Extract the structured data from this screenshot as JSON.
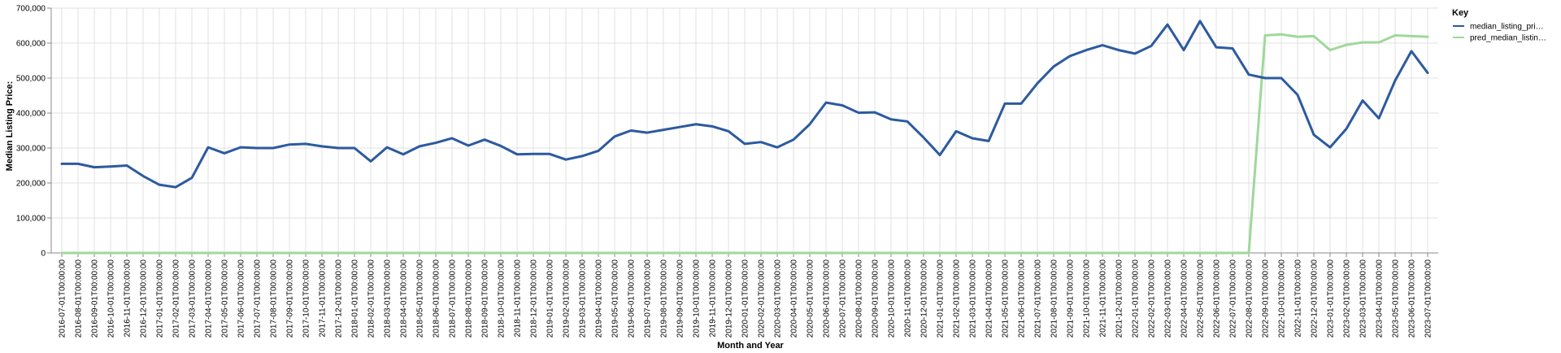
{
  "chart_data": {
    "type": "line",
    "title": "",
    "xlabel": "Month and Year",
    "ylabel": "Median Listing Price:",
    "ylim": [
      0,
      700000
    ],
    "y_ticks": [
      "0",
      "100,000",
      "200,000",
      "300,000",
      "400,000",
      "500,000",
      "600,000",
      "700,000"
    ],
    "grid": true,
    "legend": {
      "title": "Key",
      "placement": "top-right"
    },
    "x": [
      "2016-07-01T00:00:00",
      "2016-08-01T00:00:00",
      "2016-09-01T00:00:00",
      "2016-10-01T00:00:00",
      "2016-11-01T00:00:00",
      "2016-12-01T00:00:00",
      "2017-01-01T00:00:00",
      "2017-02-01T00:00:00",
      "2017-03-01T00:00:00",
      "2017-04-01T00:00:00",
      "2017-05-01T00:00:00",
      "2017-06-01T00:00:00",
      "2017-07-01T00:00:00",
      "2017-08-01T00:00:00",
      "2017-09-01T00:00:00",
      "2017-10-01T00:00:00",
      "2017-11-01T00:00:00",
      "2017-12-01T00:00:00",
      "2018-01-01T00:00:00",
      "2018-02-01T00:00:00",
      "2018-03-01T00:00:00",
      "2018-04-01T00:00:00",
      "2018-05-01T00:00:00",
      "2018-06-01T00:00:00",
      "2018-07-01T00:00:00",
      "2018-08-01T00:00:00",
      "2018-09-01T00:00:00",
      "2018-10-01T00:00:00",
      "2018-11-01T00:00:00",
      "2018-12-01T00:00:00",
      "2019-01-01T00:00:00",
      "2019-02-01T00:00:00",
      "2019-03-01T00:00:00",
      "2019-04-01T00:00:00",
      "2019-05-01T00:00:00",
      "2019-06-01T00:00:00",
      "2019-07-01T00:00:00",
      "2019-08-01T00:00:00",
      "2019-09-01T00:00:00",
      "2019-10-01T00:00:00",
      "2019-11-01T00:00:00",
      "2019-12-01T00:00:00",
      "2020-01-01T00:00:00",
      "2020-02-01T00:00:00",
      "2020-03-01T00:00:00",
      "2020-04-01T00:00:00",
      "2020-05-01T00:00:00",
      "2020-06-01T00:00:00",
      "2020-07-01T00:00:00",
      "2020-08-01T00:00:00",
      "2020-09-01T00:00:00",
      "2020-10-01T00:00:00",
      "2020-11-01T00:00:00",
      "2020-12-01T00:00:00",
      "2021-01-01T00:00:00",
      "2021-02-01T00:00:00",
      "2021-03-01T00:00:00",
      "2021-04-01T00:00:00",
      "2021-05-01T00:00:00",
      "2021-06-01T00:00:00",
      "2021-07-01T00:00:00",
      "2021-08-01T00:00:00",
      "2021-09-01T00:00:00",
      "2021-10-01T00:00:00",
      "2021-11-01T00:00:00",
      "2021-12-01T00:00:00",
      "2022-01-01T00:00:00",
      "2022-02-01T00:00:00",
      "2022-03-01T00:00:00",
      "2022-04-01T00:00:00",
      "2022-05-01T00:00:00",
      "2022-06-01T00:00:00",
      "2022-07-01T00:00:00",
      "2022-08-01T00:00:00",
      "2022-09-01T00:00:00",
      "2022-10-01T00:00:00",
      "2022-11-01T00:00:00",
      "2022-12-01T00:00:00",
      "2023-01-01T00:00:00",
      "2023-02-01T00:00:00",
      "2023-03-01T00:00:00",
      "2023-04-01T00:00:00",
      "2023-05-01T00:00:00",
      "2023-06-01T00:00:00",
      "2023-07-01T00:00:00"
    ],
    "series": [
      {
        "name": "median_listing_pri…",
        "color": "#2c5a9f",
        "values": [
          255000,
          255000,
          245000,
          247000,
          250000,
          220000,
          195000,
          188000,
          215000,
          302000,
          285000,
          302000,
          300000,
          300000,
          310000,
          312000,
          305000,
          300000,
          300000,
          262000,
          302000,
          282000,
          305000,
          315000,
          328000,
          307000,
          324000,
          306000,
          282000,
          283000,
          283000,
          267000,
          277000,
          292000,
          333000,
          350000,
          344000,
          352000,
          360000,
          368000,
          362000,
          348000,
          312000,
          317000,
          302000,
          324000,
          368000,
          430000,
          422000,
          401000,
          402000,
          382000,
          376000,
          330000,
          280000,
          348000,
          328000,
          320000,
          427000,
          427000,
          485000,
          533000,
          563000,
          580000,
          594000,
          580000,
          570000,
          592000,
          653000,
          580000,
          663000,
          588000,
          585000,
          510000,
          500000,
          500000,
          452000,
          338000,
          302000,
          355000,
          436000,
          385000,
          493000,
          577000,
          515000
        ]
      },
      {
        "name": "pred_median_listin…",
        "color": "#9fd89a",
        "values": [
          0,
          0,
          0,
          0,
          0,
          0,
          0,
          0,
          0,
          0,
          0,
          0,
          0,
          0,
          0,
          0,
          0,
          0,
          0,
          0,
          0,
          0,
          0,
          0,
          0,
          0,
          0,
          0,
          0,
          0,
          0,
          0,
          0,
          0,
          0,
          0,
          0,
          0,
          0,
          0,
          0,
          0,
          0,
          0,
          0,
          0,
          0,
          0,
          0,
          0,
          0,
          0,
          0,
          0,
          0,
          0,
          0,
          0,
          0,
          0,
          0,
          0,
          0,
          0,
          0,
          0,
          0,
          0,
          0,
          0,
          0,
          0,
          0,
          0,
          622000,
          625000,
          618000,
          620000,
          580000,
          595000,
          602000,
          602000,
          622000,
          620000,
          618000
        ]
      }
    ]
  }
}
